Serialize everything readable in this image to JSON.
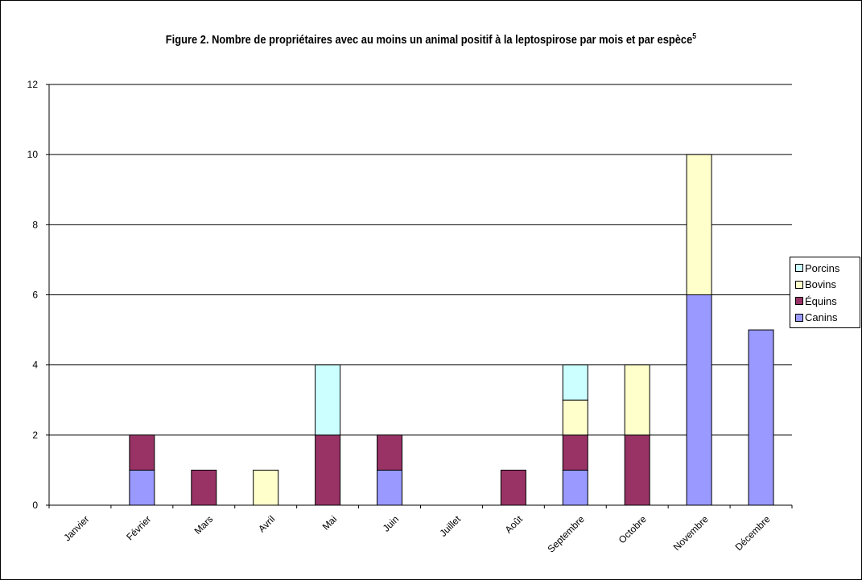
{
  "chart_data": {
    "type": "bar",
    "stacked": true,
    "title": "Figure 2. Nombre de propriétaires avec au moins un animal positif à la leptospirose par mois et par espèce",
    "title_superscript": "5",
    "xlabel": "",
    "ylabel": "",
    "ylim": [
      0,
      12
    ],
    "yticks": [
      0,
      2,
      4,
      6,
      8,
      10,
      12
    ],
    "grid": true,
    "legend_position": "right",
    "categories": [
      "Janvier",
      "Février",
      "Mars",
      "Avril",
      "Mai",
      "Juin",
      "Juillet",
      "Août",
      "Septembre",
      "Octobre",
      "Novembre",
      "Décembre"
    ],
    "series": [
      {
        "name": "Canins",
        "color": "#9999ff",
        "values": [
          0,
          1,
          0,
          0,
          0,
          1,
          0,
          0,
          1,
          0,
          6,
          5
        ]
      },
      {
        "name": "Équins",
        "color": "#993366",
        "values": [
          0,
          1,
          1,
          0,
          2,
          1,
          0,
          1,
          1,
          2,
          0,
          0
        ]
      },
      {
        "name": "Bovins",
        "color": "#ffffcc",
        "values": [
          0,
          0,
          0,
          1,
          0,
          0,
          0,
          0,
          1,
          2,
          4,
          0
        ]
      },
      {
        "name": "Porcins",
        "color": "#ccffff",
        "values": [
          0,
          0,
          0,
          0,
          2,
          0,
          0,
          0,
          1,
          0,
          0,
          0
        ]
      }
    ],
    "legend_order": [
      "Porcins",
      "Bovins",
      "Équins",
      "Canins"
    ]
  }
}
